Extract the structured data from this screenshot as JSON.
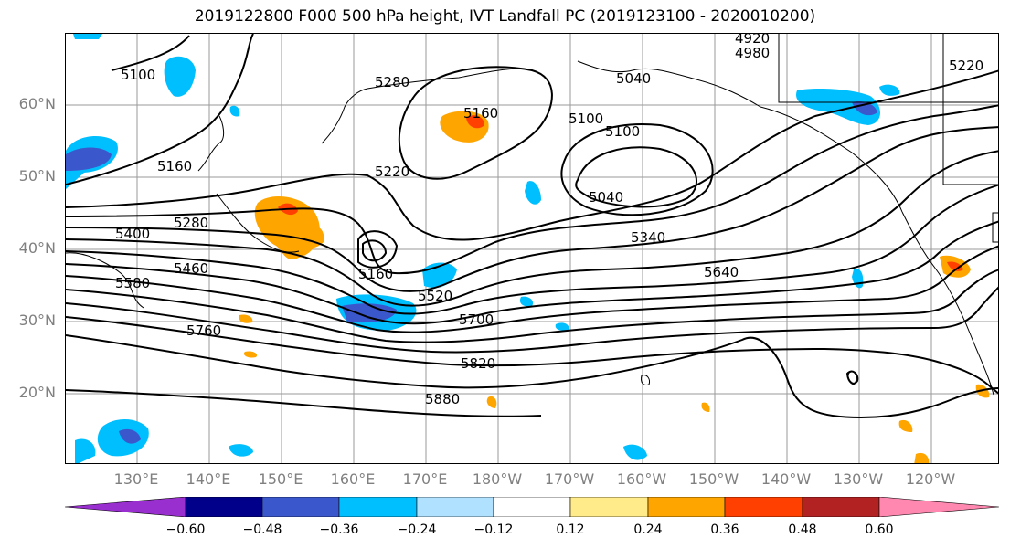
{
  "title": "2019122800 F000 500 hPa height, IVT Landfall PC (2019123100 - 2020010200)",
  "lat_labels": [
    "60°N",
    "50°N",
    "40°N",
    "30°N",
    "20°N"
  ],
  "lon_labels": [
    "130°E",
    "140°E",
    "150°E",
    "160°E",
    "170°E",
    "180°W",
    "170°W",
    "160°W",
    "150°W",
    "140°W",
    "130°W",
    "120°W"
  ],
  "colorbar": {
    "colors": [
      "#9a2fd0",
      "#00008b",
      "#3a57cc",
      "#00bfff",
      "#b0e2ff",
      "#ffffff",
      "#ffeb8a",
      "#ffa500",
      "#ff4000",
      "#b22222",
      "#ff88b0"
    ],
    "ticks": [
      "−0.60",
      "−0.48",
      "−0.36",
      "−0.24",
      "−0.12",
      "0.12",
      "0.24",
      "0.36",
      "0.48",
      "0.60"
    ]
  },
  "contour_labels": [
    "5100",
    "5160",
    "5280",
    "5400",
    "5460",
    "5580",
    "5760",
    "5220",
    "5160",
    "5520",
    "5700",
    "5820",
    "5880",
    "5100",
    "5100",
    "5040",
    "5340",
    "5640",
    "5160",
    "4920",
    "4980",
    "5220",
    "5280",
    "5040"
  ]
}
